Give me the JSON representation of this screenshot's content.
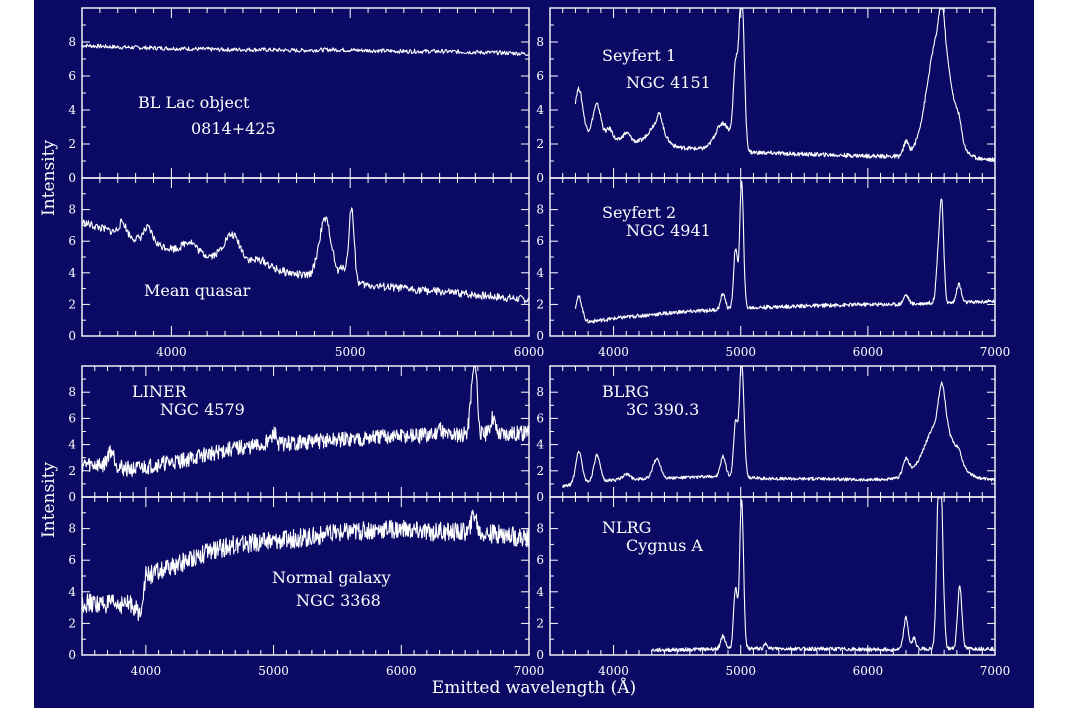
{
  "figure": {
    "xlabel": "Emitted wavelength (Å)",
    "ylabel": "Intensity",
    "background": "#0a0a64",
    "foreground": "#ffffff"
  },
  "chart_data": [
    {
      "id": "bllac",
      "type": "line",
      "labels": [
        "BL Lac object",
        "0814+425"
      ],
      "xlim": [
        3500,
        6000
      ],
      "ylim": [
        0,
        10
      ],
      "yticks": [
        0,
        2,
        4,
        6,
        8
      ],
      "x": [
        3500,
        3700,
        3900,
        4100,
        4300,
        4500,
        4700,
        4900,
        5100,
        5300,
        5500,
        5700,
        5900,
        6000
      ],
      "y": [
        7.8,
        7.7,
        7.65,
        7.6,
        7.55,
        7.55,
        7.5,
        7.55,
        7.5,
        7.45,
        7.45,
        7.4,
        7.35,
        7.3
      ],
      "lines": []
    },
    {
      "id": "seyfert1",
      "type": "line",
      "labels": [
        "Seyfert 1",
        "NGC 4151"
      ],
      "xlim": [
        3500,
        7000
      ],
      "ylim": [
        0,
        10
      ],
      "yticks": [
        0,
        2,
        4,
        6,
        8
      ],
      "x": [
        3700,
        3800,
        3900,
        4000,
        4200,
        4500,
        4700,
        5100,
        5500,
        6000,
        6300,
        6500,
        6800,
        7000
      ],
      "y": [
        2.8,
        2.6,
        2.5,
        2.2,
        2.1,
        1.8,
        1.7,
        1.5,
        1.4,
        1.3,
        1.25,
        1.4,
        1.2,
        1.05
      ],
      "lines": [
        [
          3727,
          2.5,
          30
        ],
        [
          3869,
          1.8,
          30
        ],
        [
          3970,
          0.6,
          25
        ],
        [
          4102,
          0.5,
          30
        ],
        [
          4340,
          1.2,
          60
        ],
        [
          4363,
          0.7,
          20
        ],
        [
          4861,
          1.6,
          60
        ],
        [
          4959,
          4.5,
          18
        ],
        [
          5007,
          9.5,
          20
        ],
        [
          6300,
          0.8,
          20
        ],
        [
          6563,
          7.2,
          90
        ],
        [
          6583,
          2.0,
          20
        ],
        [
          6716,
          0.8,
          20
        ]
      ]
    },
    {
      "id": "quasar",
      "type": "line",
      "labels": [
        "Mean quasar"
      ],
      "xlim": [
        3500,
        6000
      ],
      "ylim": [
        0,
        10
      ],
      "yticks": [
        0,
        2,
        4,
        6,
        8
      ],
      "x": [
        3500,
        3700,
        3900,
        4100,
        4300,
        4500,
        4700,
        4900,
        5100,
        5300,
        5500,
        5700,
        5900,
        6000
      ],
      "y": [
        7.2,
        6.5,
        5.8,
        5.3,
        4.9,
        4.4,
        3.9,
        3.5,
        3.2,
        3.0,
        2.8,
        2.6,
        2.4,
        2.3
      ],
      "lines": [
        [
          3727,
          0.8,
          20
        ],
        [
          3869,
          0.9,
          25
        ],
        [
          4102,
          0.7,
          35
        ],
        [
          4340,
          1.6,
          45
        ],
        [
          4500,
          0.4,
          40
        ],
        [
          4861,
          3.8,
          35
        ],
        [
          4959,
          0.9,
          15
        ],
        [
          5007,
          4.8,
          15
        ]
      ]
    },
    {
      "id": "seyfert2",
      "type": "line",
      "labels": [
        "Seyfert 2",
        "NGC 4941"
      ],
      "xlim": [
        3500,
        7000
      ],
      "ylim": [
        0,
        10
      ],
      "yticks": [
        0,
        2,
        4,
        6,
        8
      ],
      "x": [
        3700,
        3800,
        3900,
        4100,
        4500,
        4900,
        5100,
        5500,
        6000,
        6300,
        6500,
        6700,
        7000
      ],
      "y": [
        1.0,
        0.9,
        1.0,
        1.2,
        1.5,
        1.7,
        1.8,
        1.9,
        2.0,
        2.0,
        2.1,
        2.1,
        2.2
      ],
      "lines": [
        [
          3727,
          1.5,
          25
        ],
        [
          4861,
          1.0,
          18
        ],
        [
          4959,
          3.8,
          15
        ],
        [
          5007,
          8.0,
          15
        ],
        [
          6300,
          0.6,
          20
        ],
        [
          6548,
          1.0,
          15
        ],
        [
          6563,
          2.5,
          18
        ],
        [
          6583,
          5.0,
          15
        ],
        [
          6716,
          1.2,
          18
        ]
      ]
    },
    {
      "id": "liner",
      "type": "line",
      "labels": [
        "LINER",
        "NGC 4579"
      ],
      "xlim": [
        3500,
        7000
      ],
      "ylim": [
        0,
        10
      ],
      "yticks": [
        0,
        2,
        4,
        6,
        8
      ],
      "x": [
        3500,
        3700,
        3900,
        4100,
        4300,
        4500,
        4700,
        5000,
        5300,
        5600,
        5900,
        6200,
        6500,
        6700,
        7000
      ],
      "y": [
        2.5,
        2.4,
        2.1,
        2.5,
        2.8,
        3.3,
        3.7,
        4.0,
        4.2,
        4.4,
        4.6,
        4.7,
        4.8,
        4.8,
        4.9
      ],
      "lines": [
        [
          3727,
          1.2,
          25
        ],
        [
          4959,
          0.5,
          15
        ],
        [
          5007,
          0.9,
          15
        ],
        [
          6300,
          0.6,
          20
        ],
        [
          6548,
          1.5,
          15
        ],
        [
          6563,
          2.2,
          18
        ],
        [
          6583,
          4.0,
          15
        ],
        [
          6716,
          1.3,
          18
        ]
      ]
    },
    {
      "id": "blrg",
      "type": "line",
      "labels": [
        "BLRG",
        "3C 390.3"
      ],
      "xlim": [
        3500,
        7000
      ],
      "ylim": [
        0,
        10
      ],
      "yticks": [
        0,
        2,
        4,
        6,
        8
      ],
      "x": [
        3600,
        3800,
        4000,
        4300,
        4600,
        4900,
        5200,
        5600,
        6000,
        6300,
        6700,
        7000
      ],
      "y": [
        0.8,
        1.1,
        1.3,
        1.4,
        1.5,
        1.6,
        1.4,
        1.4,
        1.3,
        1.4,
        1.5,
        1.3
      ],
      "lines": [
        [
          3727,
          2.5,
          25
        ],
        [
          3869,
          2.0,
          25
        ],
        [
          4102,
          0.4,
          30
        ],
        [
          4340,
          1.5,
          30
        ],
        [
          4861,
          1.5,
          20
        ],
        [
          4959,
          4.0,
          15
        ],
        [
          5007,
          9.0,
          18
        ],
        [
          6300,
          1.3,
          25
        ],
        [
          6563,
          4.3,
          110
        ],
        [
          6583,
          3.0,
          25
        ],
        [
          6716,
          0.6,
          20
        ]
      ]
    },
    {
      "id": "normal",
      "type": "line",
      "labels": [
        "Normal galaxy",
        "NGC 3368"
      ],
      "xlim": [
        3500,
        7000
      ],
      "ylim": [
        0,
        10
      ],
      "yticks": [
        0,
        2,
        4,
        6,
        8
      ],
      "x": [
        3500,
        3700,
        3900,
        3950,
        4000,
        4200,
        4400,
        4700,
        5000,
        5300,
        5600,
        5900,
        6200,
        6500,
        6800,
        7000
      ],
      "y": [
        3.3,
        3.2,
        3.2,
        2.5,
        5.0,
        5.5,
        6.3,
        7.0,
        7.2,
        7.5,
        7.8,
        8.0,
        7.8,
        7.8,
        7.6,
        7.4
      ],
      "lines": [
        [
          6563,
          0.9,
          15
        ],
        [
          6583,
          0.6,
          15
        ]
      ]
    },
    {
      "id": "nlrg",
      "type": "line",
      "labels": [
        "NLRG",
        "Cygnus A"
      ],
      "xlim": [
        3500,
        7000
      ],
      "ylim": [
        0,
        10
      ],
      "yticks": [
        0,
        2,
        4,
        6,
        8
      ],
      "x": [
        4300,
        4600,
        4900,
        5100,
        5500,
        6000,
        6300,
        6500,
        6800,
        7000
      ],
      "y": [
        0.3,
        0.35,
        0.4,
        0.4,
        0.4,
        0.35,
        0.35,
        0.4,
        0.4,
        0.4
      ],
      "lines": [
        [
          4861,
          0.8,
          18
        ],
        [
          4959,
          3.8,
          15
        ],
        [
          5007,
          9.5,
          15
        ],
        [
          5200,
          0.3,
          15
        ],
        [
          6300,
          2.0,
          18
        ],
        [
          6364,
          0.7,
          15
        ],
        [
          6548,
          3.5,
          15
        ],
        [
          6563,
          8.5,
          15
        ],
        [
          6583,
          5.5,
          15
        ],
        [
          6716,
          2.5,
          15
        ],
        [
          6731,
          2.0,
          15
        ]
      ]
    }
  ]
}
